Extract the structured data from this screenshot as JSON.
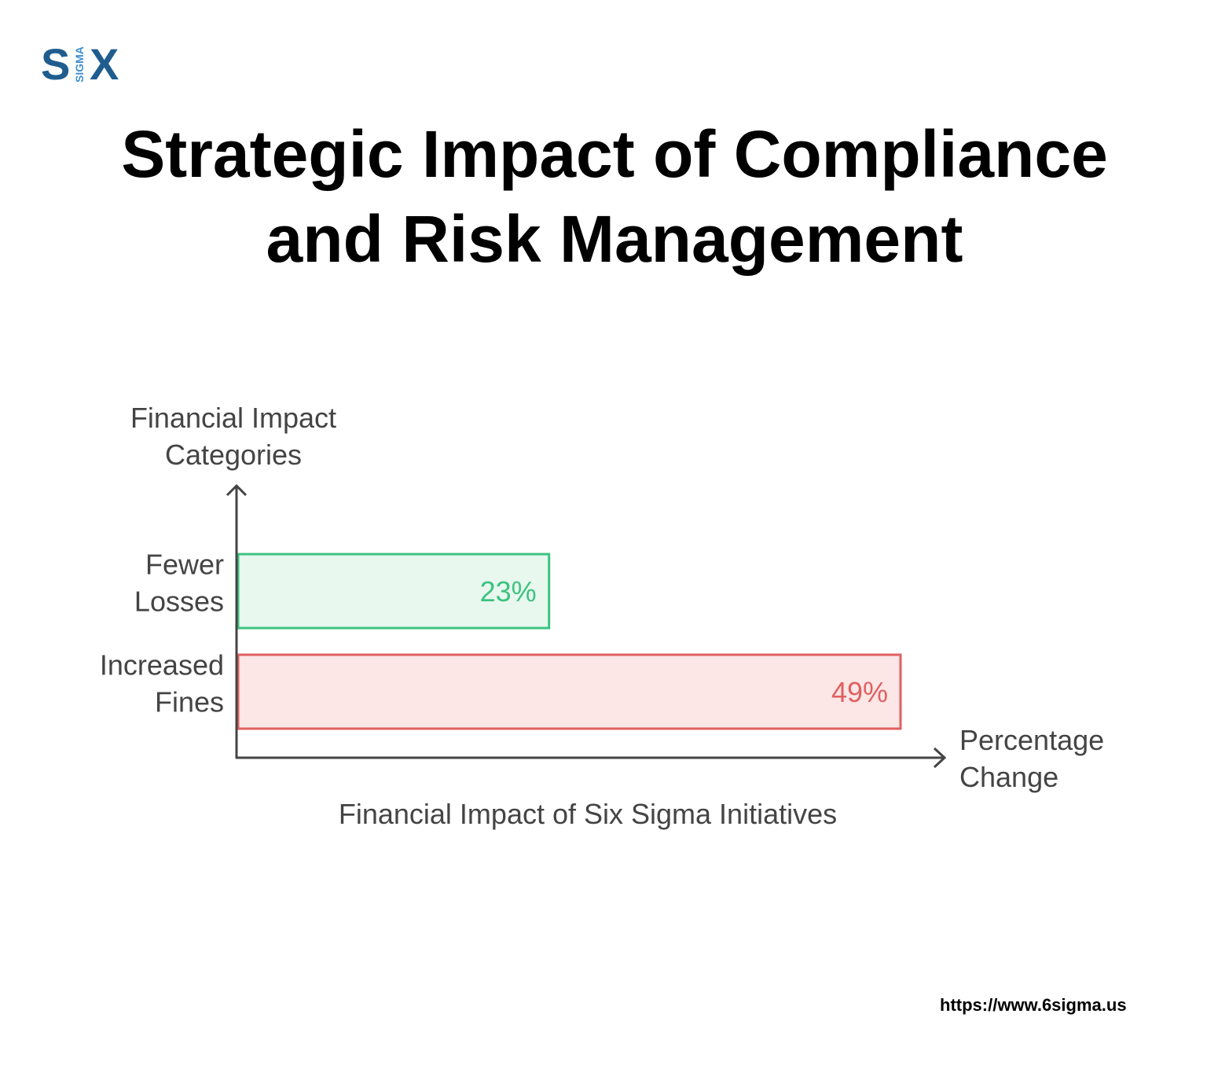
{
  "logo": {
    "letter_s": "S",
    "sigma_text": "SIGMA",
    "letter_x": "X",
    "brand_color": "#1f5d8f",
    "accent_color": "#3e8fd0"
  },
  "title": {
    "line1": "Strategic Impact of Compliance",
    "line2": "and Risk Management"
  },
  "chart_data": {
    "type": "bar",
    "orientation": "horizontal",
    "caption": "Financial Impact of Six Sigma Initiatives",
    "ylabel": [
      "Financial Impact",
      "Categories"
    ],
    "xlabel": [
      "Percentage",
      "Change"
    ],
    "categories": [
      [
        "Fewer",
        "Losses"
      ],
      [
        "Increased",
        "Fines"
      ]
    ],
    "values": [
      23,
      49
    ],
    "value_labels": [
      "23%",
      "49%"
    ],
    "colors": [
      {
        "stroke": "#3cc37f",
        "fill": "#e8f8ef",
        "text": "#3cc37f"
      },
      {
        "stroke": "#e06060",
        "fill": "#fde6e6",
        "text": "#e06060"
      }
    ],
    "xlim": [
      0,
      49
    ]
  },
  "footer": {
    "url": "https://www.6sigma.us"
  }
}
